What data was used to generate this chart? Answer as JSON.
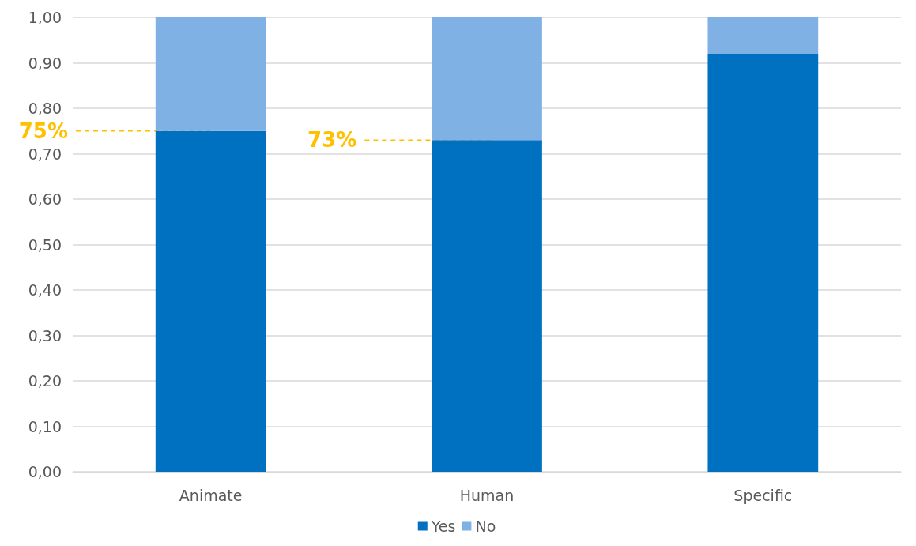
{
  "chart_data": {
    "type": "bar",
    "stacked": true,
    "categories": [
      "Animate",
      "Human",
      "Specific"
    ],
    "series": [
      {
        "name": "Yes",
        "color": "#0070c0",
        "values": [
          0.75,
          0.73,
          0.92
        ]
      },
      {
        "name": "No",
        "color": "#7fb1e4",
        "values": [
          0.25,
          0.27,
          0.08
        ]
      }
    ],
    "ylim": [
      0,
      1
    ],
    "yticks": [
      {
        "value": 0,
        "label": "0,00"
      },
      {
        "value": 0.1,
        "label": "0,10"
      },
      {
        "value": 0.2,
        "label": "0,20"
      },
      {
        "value": 0.3,
        "label": "0,30"
      },
      {
        "value": 0.4,
        "label": "0,40"
      },
      {
        "value": 0.5,
        "label": "0,50"
      },
      {
        "value": 0.6,
        "label": "0,60"
      },
      {
        "value": 0.7,
        "label": "0,70"
      },
      {
        "value": 0.8,
        "label": "0,80"
      },
      {
        "value": 0.9,
        "label": "0,90"
      },
      {
        "value": 1,
        "label": "1,00"
      }
    ],
    "annotations": [
      {
        "text": "75%",
        "x": "Animate",
        "y": 0.75
      },
      {
        "text": "73%",
        "x": "Human",
        "y": 0.73
      }
    ],
    "grid": "y",
    "legend": "bottom"
  }
}
